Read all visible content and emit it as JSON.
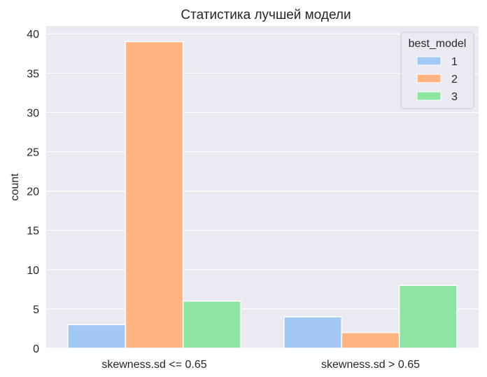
{
  "chart_data": {
    "type": "bar",
    "title": "Статистика лучшей модели",
    "xlabel": "",
    "ylabel": "count",
    "categories": [
      "skewness.sd <= 0.65",
      "skewness.sd > 0.65"
    ],
    "series": [
      {
        "name": "1",
        "values": [
          3,
          4
        ],
        "color": "#a1c9f4"
      },
      {
        "name": "2",
        "values": [
          39,
          2
        ],
        "color": "#ffb482"
      },
      {
        "name": "3",
        "values": [
          6,
          8
        ],
        "color": "#8de5a1"
      }
    ],
    "ylim": [
      0,
      41
    ],
    "yticks": [
      0,
      5,
      10,
      15,
      20,
      25,
      30,
      35,
      40
    ],
    "grid": true,
    "legend": {
      "title": "best_model",
      "placement": "top-right"
    },
    "colors": {
      "plot_background": "#eaeaf2",
      "grid": "#ffffff",
      "text": "#262626"
    }
  }
}
